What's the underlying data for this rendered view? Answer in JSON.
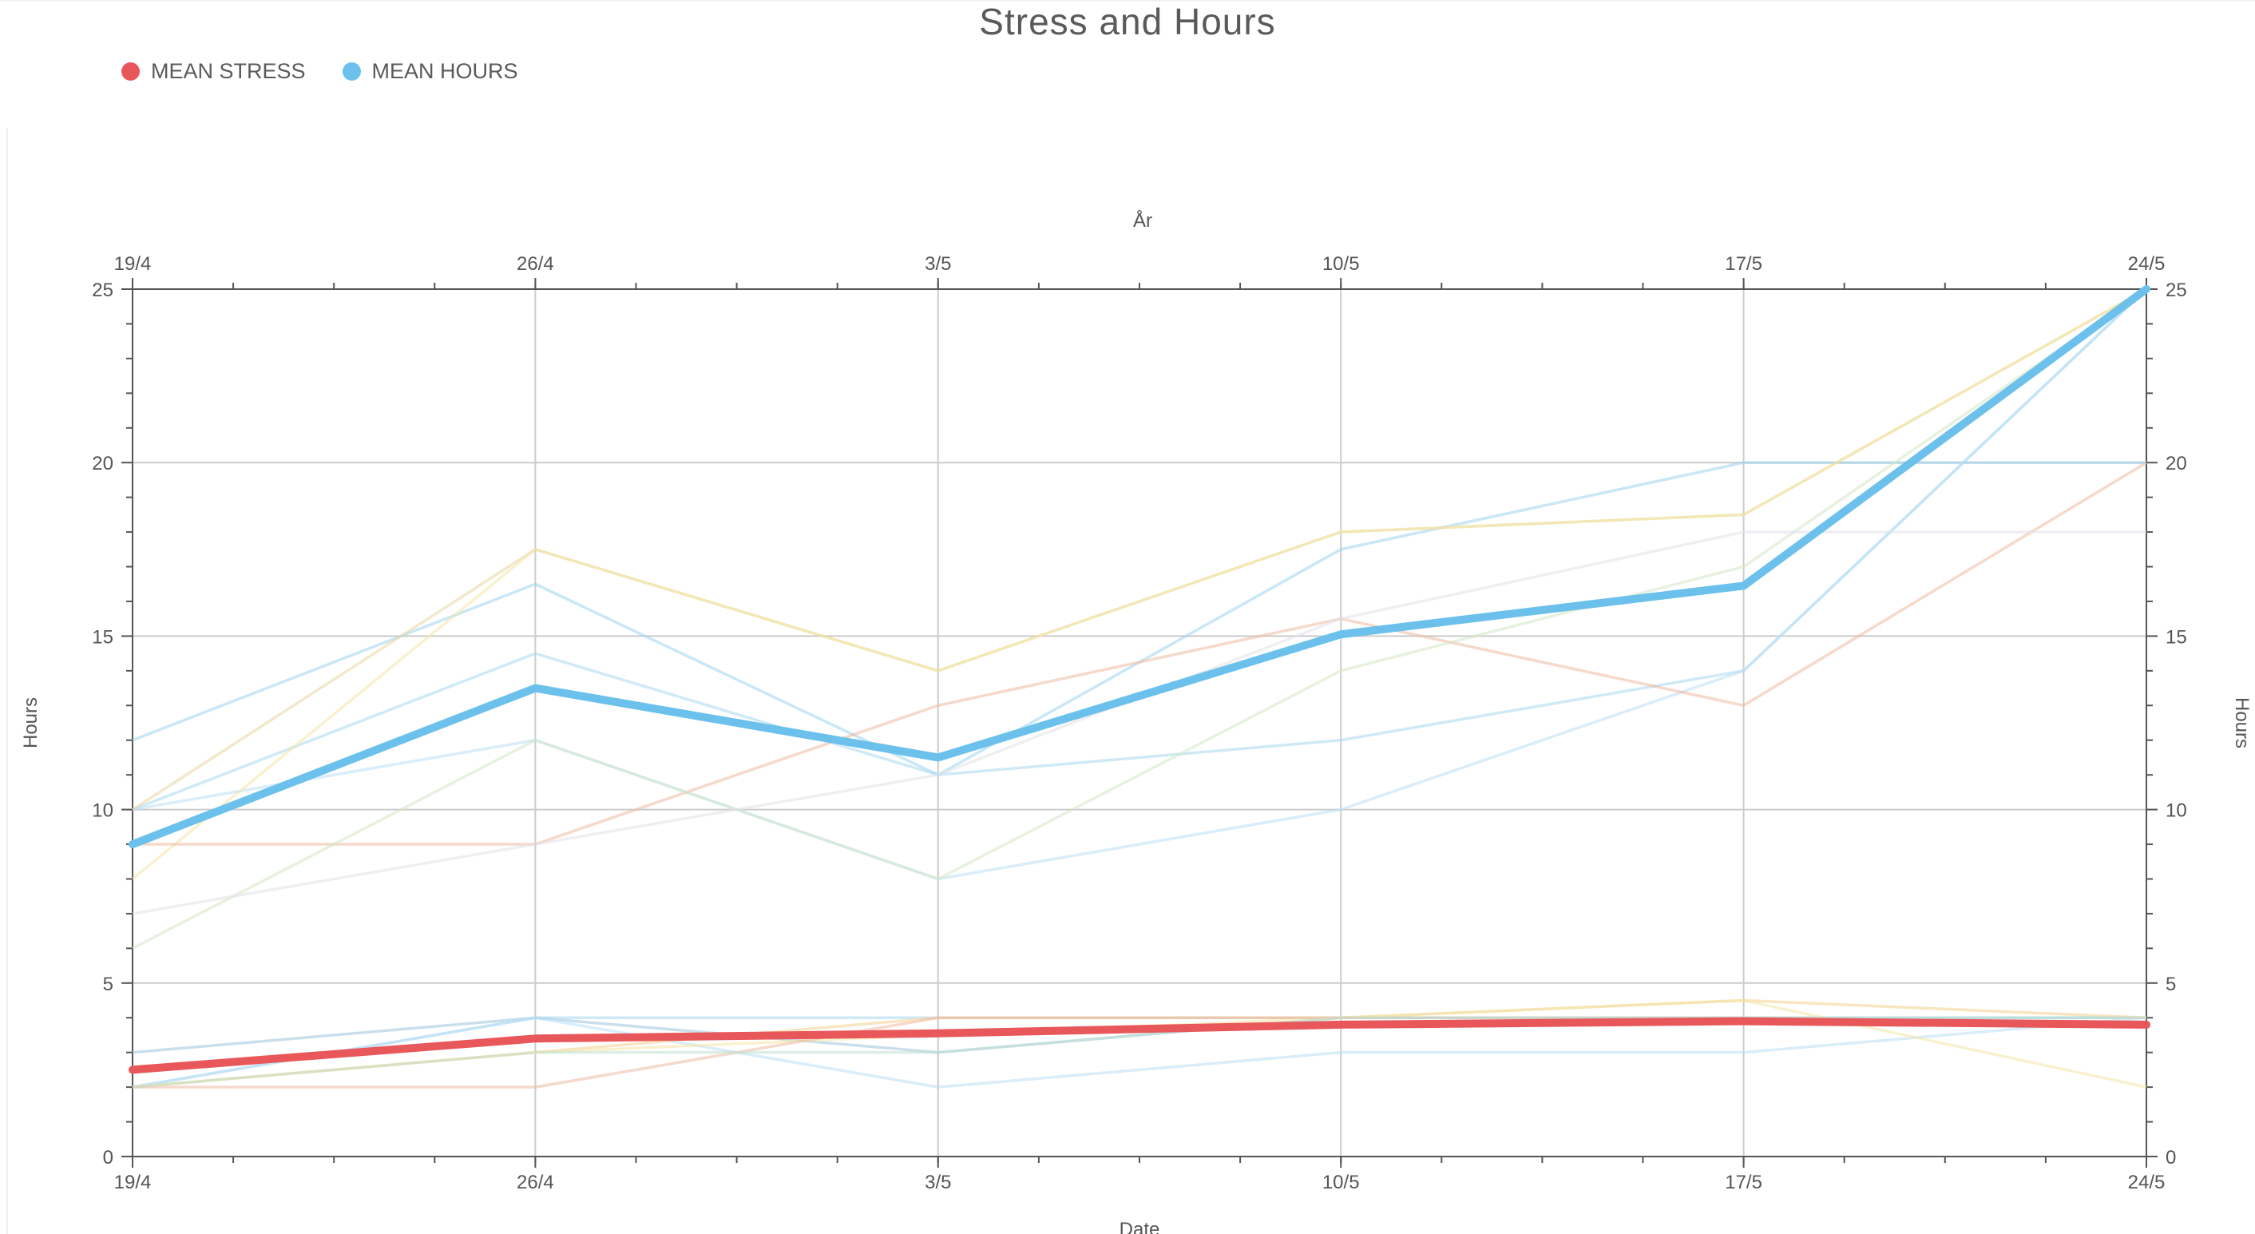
{
  "chart_data": {
    "type": "line",
    "title": "Stress and Hours",
    "xlabel": "Date",
    "xlabel_top": "År",
    "ylabel": "Hours",
    "ylabel_right": "Hours",
    "ylim": [
      0,
      25
    ],
    "yticks": [
      0,
      5,
      10,
      15,
      20,
      25
    ],
    "grid": true,
    "legend_position": "top-left",
    "categories": [
      "19/4",
      "26/4",
      "3/5",
      "10/5",
      "17/5",
      "24/5"
    ],
    "series": [
      {
        "name": "MEAN STRESS",
        "color": "#e8575a",
        "values": [
          2.5,
          3.4,
          3.55,
          3.8,
          3.9,
          3.8
        ]
      },
      {
        "name": "MEAN HOURS",
        "color": "#6cc1ec",
        "values": [
          9,
          13.5,
          11.5,
          15.05,
          16.45,
          25
        ]
      }
    ],
    "background_series": [
      {
        "color": "#9dd4ef",
        "values": [
          12,
          16.5,
          11,
          17.5,
          20,
          20
        ]
      },
      {
        "color": "#a8d8f1",
        "values": [
          10,
          14.5,
          11,
          12,
          14,
          25
        ]
      },
      {
        "color": "#b9dff5",
        "values": [
          10,
          12,
          8,
          10,
          14,
          25
        ]
      },
      {
        "color": "#e7d7a0",
        "values": [
          10,
          17.5,
          14,
          18,
          18.5,
          25
        ]
      },
      {
        "color": "#f4e6a6",
        "values": [
          8,
          17.5,
          14,
          18,
          18.5,
          25
        ]
      },
      {
        "color": "#eeb9a0",
        "values": [
          9,
          9,
          13,
          15.5,
          13,
          20
        ]
      },
      {
        "color": "#d2e8c4",
        "values": [
          6,
          12,
          8,
          14,
          17,
          25
        ]
      },
      {
        "color": "#e2e2ea",
        "values": [
          7,
          9,
          11,
          15.5,
          18,
          18
        ]
      },
      {
        "color": "#9fc4df",
        "values": [
          3,
          4,
          3,
          4,
          4,
          4
        ]
      },
      {
        "color": "#a8d8f1",
        "values": [
          2,
          4,
          4,
          4,
          4,
          4
        ]
      },
      {
        "color": "#b9dff5",
        "values": [
          2,
          4,
          2,
          3,
          3,
          4
        ]
      },
      {
        "color": "#f2cf8e",
        "values": [
          2,
          3,
          4,
          4,
          4.5,
          4
        ]
      },
      {
        "color": "#f4e6a6",
        "values": [
          2,
          3,
          3.5,
          4,
          4.5,
          2
        ]
      },
      {
        "color": "#eeb9a0",
        "values": [
          2,
          2,
          4,
          4,
          4,
          3.8
        ]
      },
      {
        "color": "#bfe0cf",
        "values": [
          2,
          3,
          3,
          4,
          4,
          4
        ]
      }
    ]
  }
}
